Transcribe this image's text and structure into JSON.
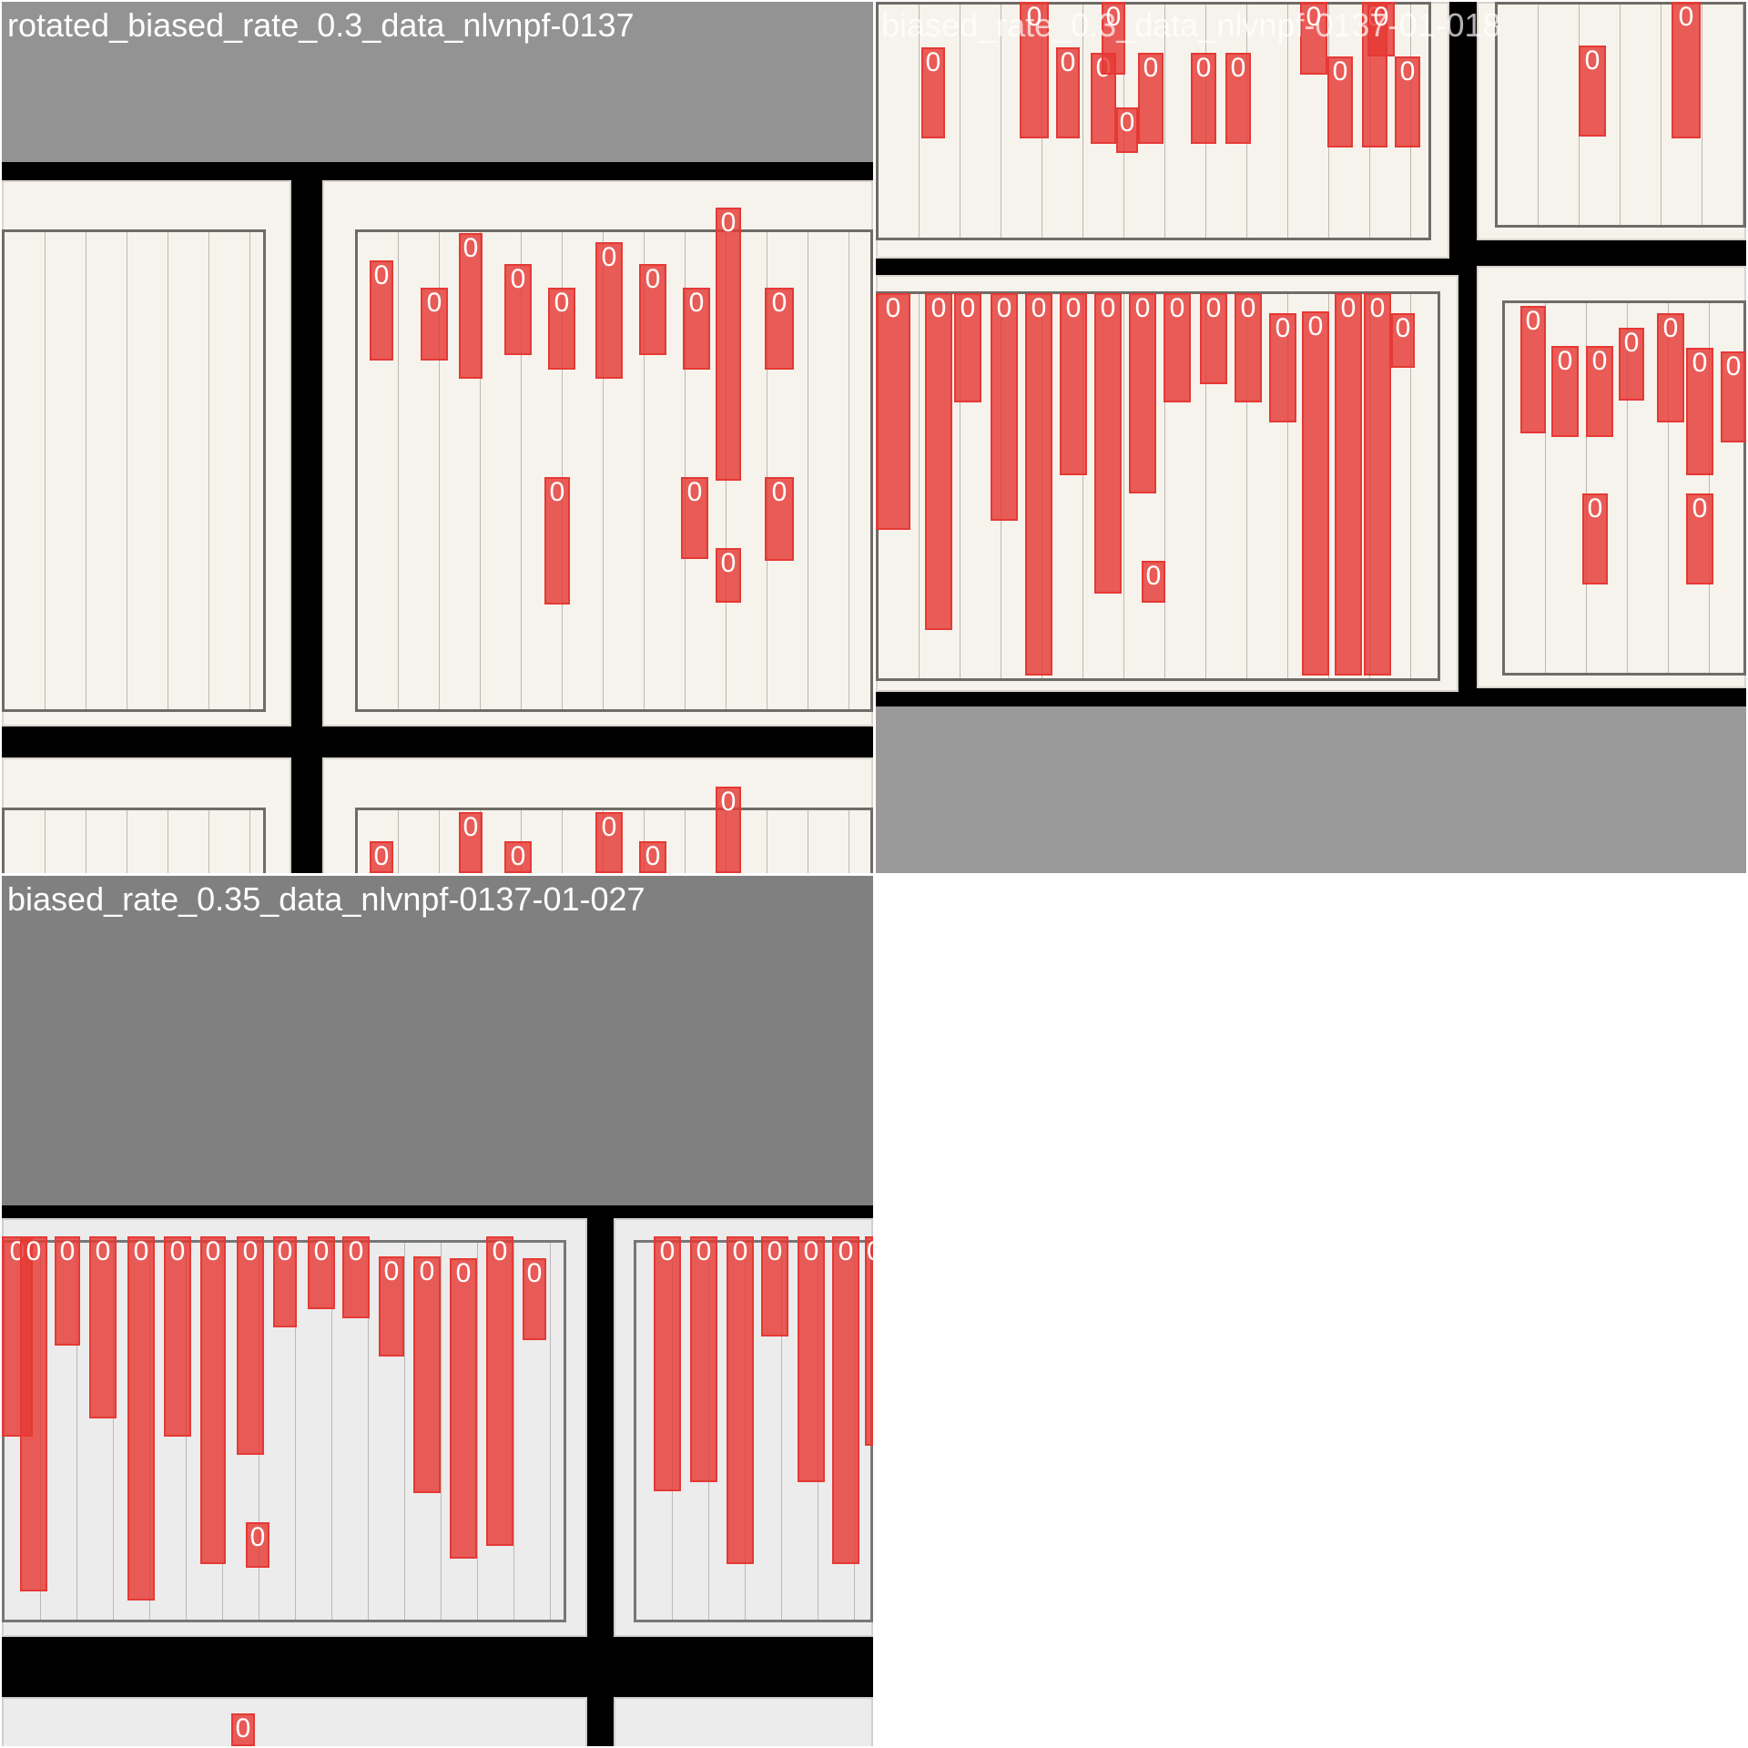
{
  "colors": {
    "box": "#e53935",
    "caption": "#ffffff",
    "gray_pad_tile1": "#939393",
    "gray_pad_tile2": "#9a9a9a",
    "gray_pad_tile3": "#808080",
    "scan_background": "#000000"
  },
  "tiles": [
    {
      "caption": "rotated_biased_rate_0.3_data_nlvnpf-0137"
    },
    {
      "caption": "biased_rate_0.3_data_nlvnpf-0137-01-018",
      "caption_partially_occluded": true
    },
    {
      "caption": "biased_rate_0.35_data_nlvnpf-0137-01-027"
    }
  ],
  "box_label": "0"
}
